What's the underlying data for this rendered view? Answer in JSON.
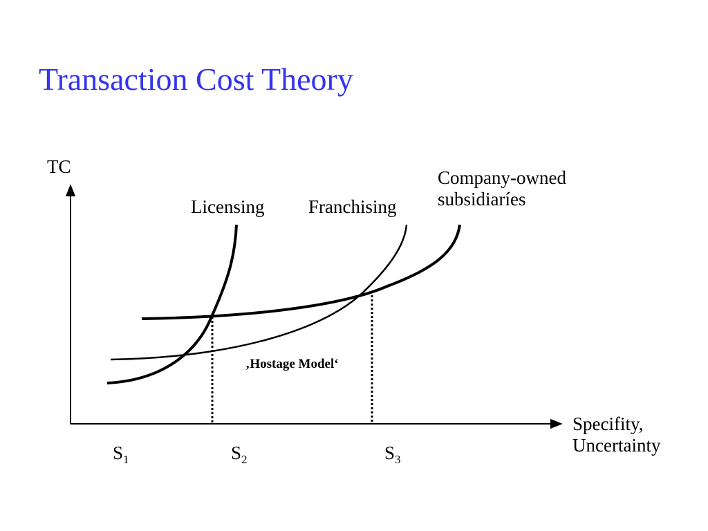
{
  "title": "Transaction Cost Theory",
  "axes": {
    "y_label": "TC",
    "x_label_line1": "Specifity,",
    "x_label_line2": "Uncertainty"
  },
  "curves": {
    "licensing": "Licensing",
    "franchising": "Franchising",
    "company_owned_line1": "Company-owned",
    "company_owned_line2": "subsidiaríes"
  },
  "annotation": "‚Hostage Model‘",
  "thresholds": [
    {
      "base": "S",
      "sub": "1"
    },
    {
      "base": "S",
      "sub": "2"
    },
    {
      "base": "S",
      "sub": "3"
    }
  ],
  "colors": {
    "title": "#3333ee",
    "lines": "#000000"
  }
}
